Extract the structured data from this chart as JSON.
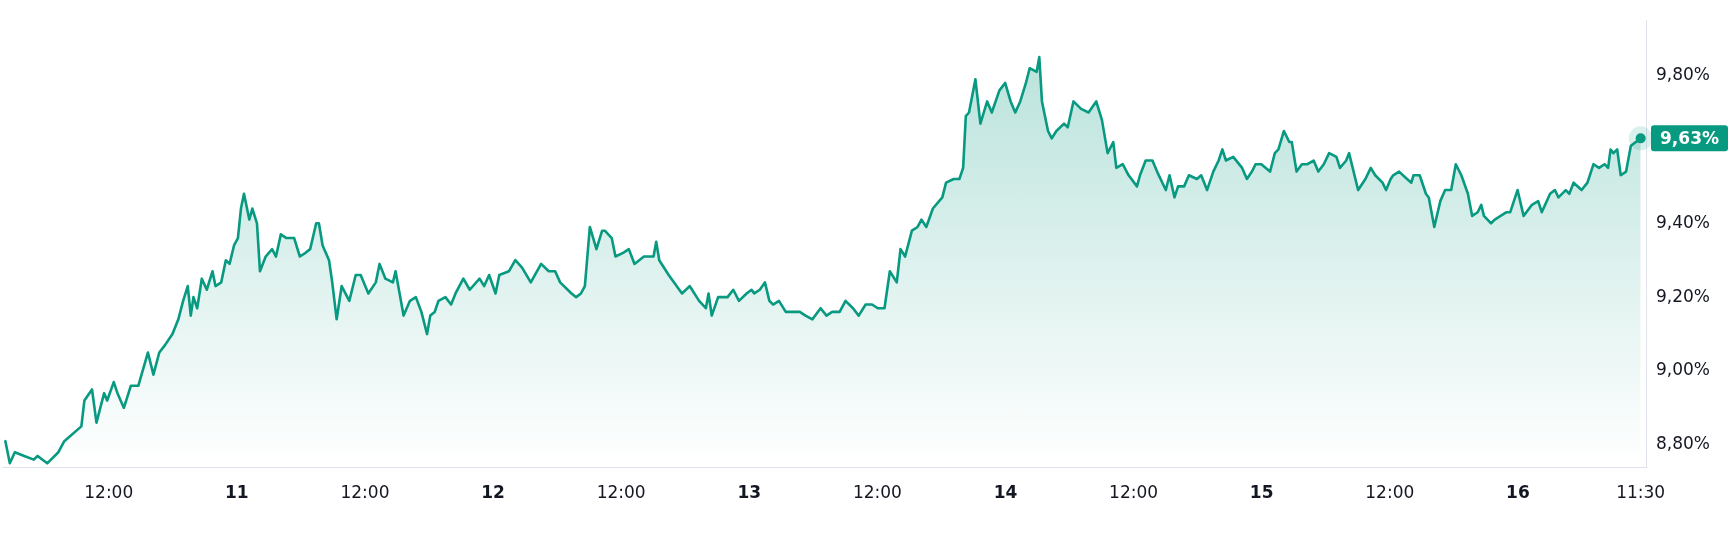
{
  "chart_data": {
    "type": "area",
    "x": [
      "--01-10T02:19",
      "--01-10T02:44",
      "--01-10T03:12",
      "--01-10T04:05",
      "--01-10T04:59",
      "--01-10T05:20",
      "--01-10T06:14",
      "--01-10T07:17",
      "--01-10T07:50",
      "--01-10T09:26",
      "--01-10T09:43",
      "--01-10T10:26",
      "--01-10T10:51",
      "--01-10T11:34",
      "--01-10T11:51",
      "--01-10T12:28",
      "--01-10T12:49",
      "--01-10T13:25",
      "--01-10T14:04",
      "--01-10T14:46",
      "--01-10T15:40",
      "--01-10T16:11",
      "--01-10T16:44",
      "--01-10T17:16",
      "--01-10T17:58",
      "--01-10T18:31",
      "--01-10T18:58",
      "--01-10T19:24",
      "--01-10T19:41",
      "--01-10T19:56",
      "--01-10T20:17",
      "--01-10T20:43",
      "--01-10T21:11",
      "--01-10T21:43",
      "--01-10T22:00",
      "--01-10T22:32",
      "--01-10T22:58",
      "--01-10T23:19",
      "--01-10T23:44",
      "--01-11T00:06",
      "--01-11T00:23",
      "--01-11T00:40",
      "--01-11T01:10",
      "--01-11T01:27",
      "--01-11T01:53",
      "--01-11T02:10",
      "--01-11T02:42",
      "--01-11T03:18",
      "--01-11T03:40",
      "--01-11T04:07",
      "--01-11T04:39",
      "--01-11T05:22",
      "--01-11T05:54",
      "--01-11T06:26",
      "--01-11T06:52",
      "--01-11T07:26",
      "--01-11T07:41",
      "--01-11T08:02",
      "--01-11T08:38",
      "--01-11T08:56",
      "--01-11T09:21",
      "--01-11T09:49",
      "--01-11T10:32",
      "--01-11T11:08",
      "--01-11T11:36",
      "--01-11T12:19",
      "--01-11T13:01",
      "--01-11T13:22",
      "--01-11T13:55",
      "--01-11T14:37",
      "--01-11T14:52",
      "--01-11T15:37",
      "--01-11T16:13",
      "--01-11T16:46",
      "--01-11T17:17",
      "--01-11T17:49",
      "--01-11T18:07",
      "--01-11T18:32",
      "--01-11T18:53",
      "--01-11T19:32",
      "--01-11T20:04",
      "--01-11T20:29",
      "--01-11T21:13",
      "--01-11T21:49",
      "--01-11T22:44",
      "--01-11T23:10",
      "--01-11T23:38",
      "--01-12T00:14",
      "--01-12T00:35",
      "--01-12T01:29",
      "--01-12T02:05",
      "--01-12T02:43",
      "--01-12T03:32",
      "--01-12T04:30",
      "--01-12T05:13",
      "--01-12T05:49",
      "--01-12T06:17",
      "--01-12T07:21",
      "--01-12T07:47",
      "--01-12T08:14",
      "--01-12T08:36",
      "--01-12T09:04",
      "--01-12T09:41",
      "--01-12T10:13",
      "--01-12T10:28",
      "--01-12T11:07",
      "--01-12T11:28",
      "--01-12T12:11",
      "--01-12T12:43",
      "--01-12T13:15",
      "--01-12T14:08",
      "--01-12T15:02",
      "--01-12T15:17",
      "--01-12T15:34",
      "--01-12T16:27",
      "--01-12T17:42",
      "--01-12T18:25",
      "--01-12T19:18",
      "--01-12T19:56",
      "--01-12T20:11",
      "--01-12T20:29",
      "--01-12T21:05",
      "--01-12T21:58",
      "--01-12T22:30",
      "--01-12T23:02",
      "--01-12T23:45",
      "--01-13T00:13",
      "--01-13T00:28",
      "--01-13T00:59",
      "--01-13T01:28",
      "--01-13T01:53",
      "--01-13T02:14",
      "--01-13T02:47",
      "--01-13T03:25",
      "--01-13T04:01",
      "--01-13T04:44",
      "--01-13T05:16",
      "--01-13T05:55",
      "--01-13T06:41",
      "--01-13T07:14",
      "--01-13T07:46",
      "--01-13T08:28",
      "--01-13T09:01",
      "--01-13T09:43",
      "--01-13T10:15",
      "--01-13T10:54",
      "--01-13T11:30",
      "--01-13T12:02",
      "--01-13T12:40",
      "--01-13T13:10",
      "--01-13T13:49",
      "--01-13T14:10",
      "--01-13T14:36",
      "--01-13T15:14",
      "--01-13T15:46",
      "--01-13T16:08",
      "--01-13T16:35",
      "--01-13T17:12",
      "--01-13T18:05",
      "--01-13T18:26",
      "--01-13T19:09",
      "--01-13T19:41",
      "--01-13T20:02",
      "--01-13T20:17",
      "--01-13T20:35",
      "--01-13T21:11",
      "--01-13T21:39",
      "--01-13T22:17",
      "--01-13T22:43",
      "--01-13T23:26",
      "--01-13T23:58",
      "--01-14T00:29",
      "--01-14T00:55",
      "--01-14T01:23",
      "--01-14T01:55",
      "--01-14T02:16",
      "--01-14T02:55",
      "--01-14T03:10",
      "--01-14T03:25",
      "--01-14T03:59",
      "--01-14T04:20",
      "--01-14T04:46",
      "--01-14T05:29",
      "--01-14T05:50",
      "--01-14T06:22",
      "--01-14T07:05",
      "--01-14T07:47",
      "--01-14T08:30",
      "--01-14T09:02",
      "--01-14T09:34",
      "--01-14T10:06",
      "--01-14T10:23",
      "--01-14T10:59",
      "--01-14T11:32",
      "--01-14T12:19",
      "--01-14T12:36",
      "--01-14T13:08",
      "--01-14T13:46",
      "--01-14T14:12",
      "--01-14T15:01",
      "--01-14T15:22",
      "--01-14T15:50",
      "--01-14T16:10",
      "--01-14T16:44",
      "--01-14T17:11",
      "--01-14T17:56",
      "--01-14T18:20",
      "--01-14T18:53",
      "--01-14T19:28",
      "--01-14T19:58",
      "--01-14T20:19",
      "--01-14T20:39",
      "--01-14T21:20",
      "--01-14T22:10",
      "--01-14T22:37",
      "--01-14T23:05",
      "--01-14T23:26",
      "--01-14T23:58",
      "--01-15T00:23",
      "--01-15T00:47",
      "--01-15T01:14",
      "--01-15T01:34",
      "--01-15T02:05",
      "--01-15T02:35",
      "--01-15T02:49",
      "--01-15T03:16",
      "--01-15T03:46",
      "--01-15T04:17",
      "--01-15T04:52",
      "--01-15T05:18",
      "--01-15T05:49",
      "--01-15T06:19",
      "--01-15T07:00",
      "--01-15T07:20",
      "--01-15T07:55",
      "--01-15T08:11",
      "--01-15T09:02",
      "--01-15T09:43",
      "--01-15T10:13",
      "--01-15T10:38",
      "--01-15T11:19",
      "--01-15T11:39",
      "--01-15T12:05",
      "--01-15T12:19",
      "--01-15T12:52",
      "--01-15T13:37",
      "--01-15T14:01",
      "--01-15T14:13",
      "--01-15T14:48",
      "--01-15T15:23",
      "--01-15T15:39",
      "--01-15T16:10",
      "--01-15T16:44",
      "--01-15T17:11",
      "--01-15T17:45",
      "--01-15T18:11",
      "--01-15T18:42",
      "--01-15T19:19",
      "--01-15T19:43",
      "--01-15T20:14",
      "--01-15T20:34",
      "--01-15T20:49",
      "--01-15T21:29",
      "--01-15T21:50",
      "--01-15T22:56",
      "--01-15T23:17",
      "--01-15T23:58",
      "--01-16T00:32",
      "--01-16T01:19",
      "--01-16T01:54",
      "--01-16T02:14",
      "--01-16T03:01",
      "--01-16T03:28",
      "--01-16T03:48",
      "--01-16T04:29",
      "--01-16T04:49",
      "--01-16T05:13",
      "--01-16T05:58",
      "--01-16T06:31",
      "--01-16T07:05",
      "--01-16T07:36",
      "--01-16T08:07",
      "--01-16T08:27",
      "--01-16T08:41",
      "--01-16T08:57",
      "--01-16T09:18",
      "--01-16T09:38",
      "--01-16T10:08",
      "--01-16T10:35",
      "--01-16T11:30"
    ],
    "series": [
      {
        "color": "#089981",
        "values": [
          8.81,
          8.75,
          8.78,
          8.77,
          8.76,
          8.77,
          8.75,
          8.78,
          8.81,
          8.85,
          8.92,
          8.95,
          8.86,
          8.94,
          8.92,
          8.97,
          8.94,
          8.9,
          8.96,
          8.96,
          9.05,
          8.99,
          9.05,
          9.07,
          9.1,
          9.14,
          9.19,
          9.23,
          9.15,
          9.2,
          9.17,
          9.25,
          9.22,
          9.27,
          9.23,
          9.24,
          9.3,
          9.29,
          9.34,
          9.36,
          9.44,
          9.48,
          9.41,
          9.44,
          9.4,
          9.27,
          9.31,
          9.33,
          9.31,
          9.37,
          9.36,
          9.36,
          9.31,
          9.32,
          9.33,
          9.4,
          9.4,
          9.34,
          9.3,
          9.24,
          9.14,
          9.23,
          9.19,
          9.26,
          9.26,
          9.21,
          9.24,
          9.29,
          9.25,
          9.24,
          9.27,
          9.15,
          9.19,
          9.2,
          9.16,
          9.1,
          9.15,
          9.16,
          9.19,
          9.2,
          9.18,
          9.21,
          9.25,
          9.22,
          9.25,
          9.23,
          9.26,
          9.21,
          9.26,
          9.27,
          9.3,
          9.28,
          9.24,
          9.29,
          9.27,
          9.27,
          9.24,
          9.21,
          9.2,
          9.21,
          9.23,
          9.39,
          9.33,
          9.38,
          9.38,
          9.36,
          9.31,
          9.32,
          9.33,
          9.29,
          9.31,
          9.31,
          9.35,
          9.3,
          9.26,
          9.21,
          9.23,
          9.19,
          9.17,
          9.21,
          9.15,
          9.2,
          9.2,
          9.22,
          9.19,
          9.21,
          9.22,
          9.21,
          9.22,
          9.24,
          9.19,
          9.18,
          9.19,
          9.16,
          9.16,
          9.16,
          9.15,
          9.14,
          9.17,
          9.15,
          9.16,
          9.16,
          9.19,
          9.17,
          9.15,
          9.18,
          9.18,
          9.17,
          9.17,
          9.27,
          9.24,
          9.33,
          9.31,
          9.38,
          9.39,
          9.41,
          9.39,
          9.44,
          9.47,
          9.51,
          9.52,
          9.52,
          9.55,
          9.69,
          9.7,
          9.79,
          9.67,
          9.73,
          9.7,
          9.76,
          9.78,
          9.73,
          9.7,
          9.73,
          9.78,
          9.82,
          9.81,
          9.85,
          9.73,
          9.65,
          9.63,
          9.65,
          9.67,
          9.66,
          9.73,
          9.71,
          9.7,
          9.73,
          9.68,
          9.59,
          9.62,
          9.55,
          9.56,
          9.53,
          9.5,
          9.53,
          9.57,
          9.57,
          9.54,
          9.49,
          9.53,
          9.47,
          9.5,
          9.5,
          9.53,
          9.52,
          9.53,
          9.49,
          9.54,
          9.57,
          9.6,
          9.57,
          9.58,
          9.55,
          9.52,
          9.54,
          9.56,
          9.56,
          9.55,
          9.54,
          9.59,
          9.6,
          9.65,
          9.62,
          9.62,
          9.54,
          9.56,
          9.56,
          9.57,
          9.54,
          9.56,
          9.59,
          9.58,
          9.55,
          9.57,
          9.59,
          9.49,
          9.52,
          9.55,
          9.53,
          9.51,
          9.49,
          9.52,
          9.53,
          9.54,
          9.52,
          9.51,
          9.53,
          9.53,
          9.48,
          9.47,
          9.39,
          9.46,
          9.49,
          9.49,
          9.56,
          9.53,
          9.48,
          9.42,
          9.43,
          9.45,
          9.42,
          9.4,
          9.41,
          9.43,
          9.43,
          9.49,
          9.42,
          9.45,
          9.46,
          9.43,
          9.48,
          9.49,
          9.47,
          9.49,
          9.48,
          9.51,
          9.49,
          9.51,
          9.56,
          9.55,
          9.56,
          9.55,
          9.6,
          9.59,
          9.6,
          9.53,
          9.54,
          9.61,
          9.63
        ]
      }
    ],
    "xlim": [
      "--01-10T02:00",
      "--01-16T12:00"
    ],
    "ylim": [
      8.74,
      9.95
    ],
    "xticks": [
      {
        "value": "--01-10T12:00",
        "label": "12:00"
      },
      {
        "value": "--01-11",
        "label": "11"
      },
      {
        "value": "--01-11T12:00",
        "label": "12:00"
      },
      {
        "value": "--01-12",
        "label": "12"
      },
      {
        "value": "--01-12T12:00",
        "label": "12:00"
      },
      {
        "value": "--01-13",
        "label": "13"
      },
      {
        "value": "--01-13T12:00",
        "label": "12:00"
      },
      {
        "value": "--01-14",
        "label": "14"
      },
      {
        "value": "--01-14T12:00",
        "label": "12:00"
      },
      {
        "value": "--01-15",
        "label": "15"
      },
      {
        "value": "--01-15T12:00",
        "label": "12:00"
      },
      {
        "value": "--01-16",
        "label": "16"
      },
      {
        "value": "--01-16T11:30",
        "label": "11:30"
      }
    ],
    "yticks": [
      {
        "value": 8.8,
        "label": "8,80%"
      },
      {
        "value": 9.0,
        "label": "9,00%"
      },
      {
        "value": 9.2,
        "label": "9,20%"
      },
      {
        "value": 9.4,
        "label": "9,40%"
      },
      {
        "value": 9.8,
        "label": "9,80%"
      }
    ],
    "annotations": [
      {
        "text": "9,63%",
        "x": "--01-16T11:30",
        "y": 9.63
      }
    ],
    "grid": false,
    "legend": false
  }
}
